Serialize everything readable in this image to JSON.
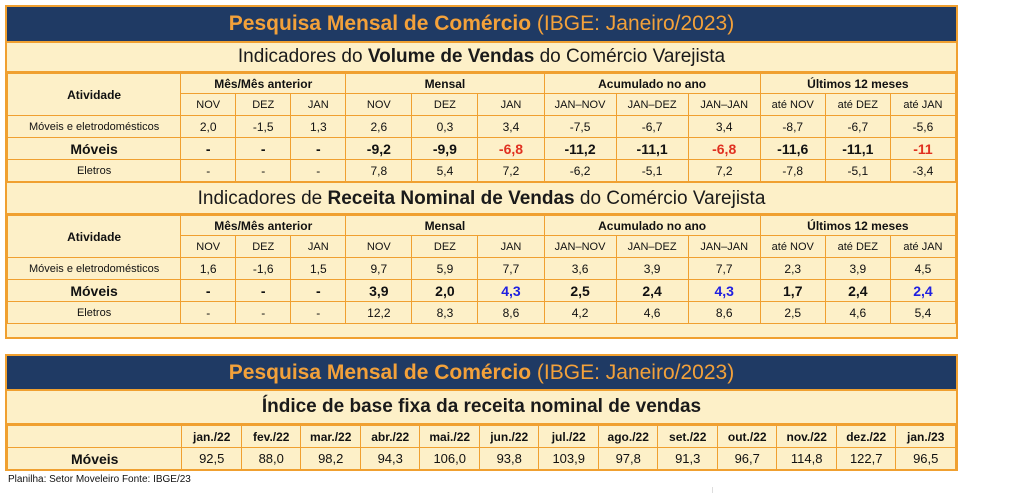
{
  "title_main": "Pesquisa Mensal de Comércio",
  "title_paren": "(IBGE: Janeiro/2023)",
  "volume": {
    "pre": "Indicadores do ",
    "bold": "Volume de Vendas",
    "post": " do Comércio Varejista"
  },
  "receita": {
    "pre": "Indicadores de ",
    "bold": "Receita Nominal de Vendas",
    "post": " do Comércio Varejista"
  },
  "headers": {
    "atividade": "Atividade",
    "mes": "Mês/Mês anterior",
    "mensal": "Mensal",
    "acum": "Acumulado no ano",
    "ult": "Últimos 12 meses"
  },
  "sub1": [
    "NOV",
    "DEZ",
    "JAN",
    "NOV",
    "DEZ",
    "JAN",
    "JAN–NOV",
    "JAN–DEZ",
    "JAN–JAN",
    "até NOV",
    "até DEZ",
    "até JAN"
  ],
  "sub2": [
    "NOV",
    "DEZ",
    "JAN",
    "NOV",
    "DEZ",
    "JAN",
    "JAN–NOV",
    "JAN–DEZ",
    "JAN–JAN",
    "até NOV",
    "até DEZ",
    "até JAN"
  ],
  "vol_rows": [
    {
      "label": "Móveis e eletrodomésticos",
      "vals": [
        "2,0",
        "-1,5",
        "1,3",
        "2,6",
        "0,3",
        "3,4",
        "-7,5",
        "-6,7",
        "3,4",
        "-8,7",
        "-6,7",
        "-5,6"
      ]
    },
    {
      "label": "Móveis",
      "vals": [
        "-",
        "-",
        "-",
        "-9,2",
        "-9,9",
        "-6,8",
        "-11,2",
        "-11,1",
        "-6,8",
        "-11,6",
        "-11,1",
        "-11"
      ]
    },
    {
      "label": "Eletros",
      "vals": [
        "-",
        "-",
        "-",
        "7,8",
        "5,4",
        "7,2",
        "-6,2",
        "-5,1",
        "7,2",
        "-7,8",
        "-5,1",
        "-3,4"
      ]
    }
  ],
  "rec_rows": [
    {
      "label": "Móveis e eletrodomésticos",
      "vals": [
        "1,6",
        "-1,6",
        "1,5",
        "9,7",
        "5,9",
        "7,7",
        "3,6",
        "3,9",
        "7,7",
        "2,3",
        "3,9",
        "4,5"
      ]
    },
    {
      "label": "Móveis",
      "vals": [
        "-",
        "-",
        "-",
        "3,9",
        "2,0",
        "4,3",
        "2,5",
        "2,4",
        "4,3",
        "1,7",
        "2,4",
        "2,4"
      ]
    },
    {
      "label": "Eletros",
      "vals": [
        "-",
        "-",
        "-",
        "12,2",
        "8,3",
        "8,6",
        "4,2",
        "4,6",
        "8,6",
        "2,5",
        "4,6",
        "5,4"
      ]
    }
  ],
  "indice": {
    "subtitle": "Índice de base fixa da receita nominal de vendas",
    "months": [
      "jan./22",
      "fev./22",
      "mar./22",
      "abr./22",
      "mai./22",
      "jun./22",
      "jul./22",
      "ago./22",
      "set./22",
      "out./22",
      "nov./22",
      "dez./22",
      "jan./23"
    ],
    "row_label": "Móveis",
    "values": [
      "92,5",
      "88,0",
      "98,2",
      "94,3",
      "106,0",
      "93,8",
      "103,9",
      "97,8",
      "91,3",
      "96,7",
      "114,8",
      "122,7",
      "96,5"
    ]
  },
  "footer": "Planilha: Setor Moveleiro  Fonte: IBGE/23",
  "colors": {
    "banner": "#1f3a64",
    "accent": "#f3a13a",
    "red": "#e03020",
    "blue": "#2020e0"
  }
}
